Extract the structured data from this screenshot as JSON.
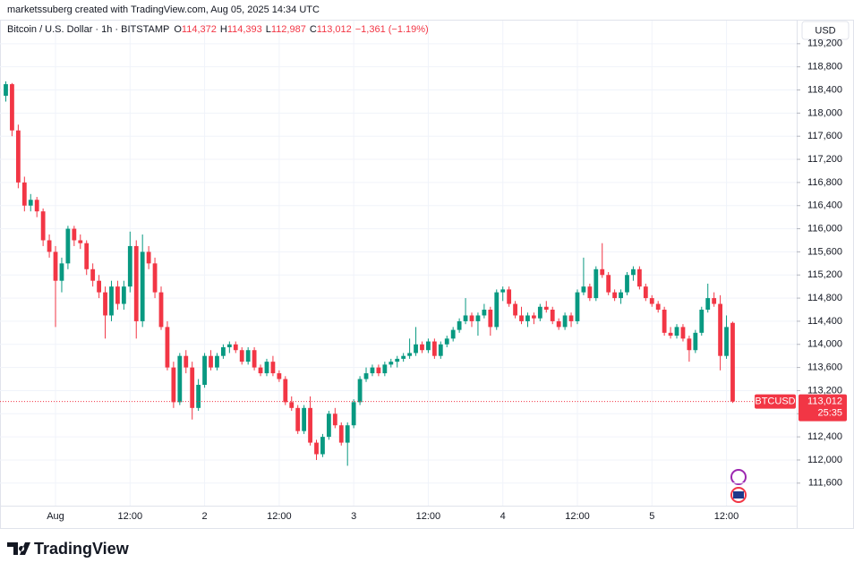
{
  "attribution": "marketssuberg created with TradingView.com, Aug 05, 2025 14:34 UTC",
  "logo": "TradingView",
  "chart_data": {
    "type": "candlestick",
    "title": "Bitcoin / U.S. Dollar · 1h · BITSTAMP",
    "ohlc_header": [
      {
        "key": "O",
        "value": "114,372"
      },
      {
        "key": "H",
        "value": "114,393"
      },
      {
        "key": "L",
        "value": "112,987"
      },
      {
        "key": "C",
        "value": "113,012"
      }
    ],
    "change": "−1,361 (−1.19%)",
    "currency": "USD",
    "price_label": {
      "symbol": "BTCUSD",
      "price": "113,012",
      "countdown": "25:35"
    },
    "colors": {
      "up": "#089981",
      "down": "#f23645"
    },
    "grid": true,
    "ylim": [
      111210,
      119600
    ],
    "yticks": [
      {
        "value": 111600,
        "label": "111,600"
      },
      {
        "value": 112000,
        "label": "112,000"
      },
      {
        "value": 112400,
        "label": "112,400"
      },
      {
        "value": 112800,
        "label": "112,800"
      },
      {
        "value": 113200,
        "label": "113,200"
      },
      {
        "value": 113600,
        "label": "113,600"
      },
      {
        "value": 114000,
        "label": "114,000"
      },
      {
        "value": 114400,
        "label": "114,400"
      },
      {
        "value": 114800,
        "label": "114,800"
      },
      {
        "value": 115200,
        "label": "115,200"
      },
      {
        "value": 115600,
        "label": "115,600"
      },
      {
        "value": 116000,
        "label": "116,000"
      },
      {
        "value": 116400,
        "label": "116,400"
      },
      {
        "value": 116800,
        "label": "116,800"
      },
      {
        "value": 117200,
        "label": "117,200"
      },
      {
        "value": 117600,
        "label": "117,600"
      },
      {
        "value": 118000,
        "label": "118,000"
      },
      {
        "value": 118400,
        "label": "118,400"
      },
      {
        "value": 118800,
        "label": "118,800"
      },
      {
        "value": 119200,
        "label": "119,200"
      }
    ],
    "categories": [
      null,
      null,
      null,
      null,
      null,
      null,
      null,
      null,
      "Aug",
      null,
      null,
      null,
      null,
      null,
      null,
      null,
      null,
      null,
      null,
      null,
      "12:00",
      null,
      null,
      null,
      null,
      null,
      null,
      null,
      null,
      null,
      null,
      null,
      "2",
      null,
      null,
      null,
      null,
      null,
      null,
      null,
      null,
      null,
      null,
      null,
      "12:00",
      null,
      null,
      null,
      null,
      null,
      null,
      null,
      null,
      null,
      null,
      null,
      "3",
      null,
      null,
      null,
      null,
      null,
      null,
      null,
      null,
      null,
      null,
      null,
      "12:00",
      null,
      null,
      null,
      null,
      null,
      null,
      null,
      null,
      null,
      null,
      null,
      "4",
      null,
      null,
      null,
      null,
      null,
      null,
      null,
      null,
      null,
      null,
      null,
      "12:00",
      null,
      null,
      null,
      null,
      null,
      null,
      null,
      null,
      null,
      null,
      null,
      "5",
      null,
      null,
      null,
      null,
      null,
      null,
      null,
      null,
      null,
      null,
      null,
      "12:00",
      null
    ],
    "candles": [
      {
        "open": 118300,
        "high": 118550,
        "low": 118200,
        "close": 118500
      },
      {
        "open": 118500,
        "high": 118520,
        "low": 117600,
        "close": 117700
      },
      {
        "open": 117700,
        "high": 117800,
        "low": 116700,
        "close": 116800
      },
      {
        "open": 116800,
        "high": 116900,
        "low": 116300,
        "close": 116400
      },
      {
        "open": 116400,
        "high": 116600,
        "low": 116300,
        "close": 116500
      },
      {
        "open": 116500,
        "high": 116550,
        "low": 116200,
        "close": 116300
      },
      {
        "open": 116300,
        "high": 116350,
        "low": 115700,
        "close": 115800
      },
      {
        "open": 115800,
        "high": 115900,
        "low": 115500,
        "close": 115600
      },
      {
        "open": 115600,
        "high": 115700,
        "low": 114300,
        "close": 115100
      },
      {
        "open": 115100,
        "high": 115500,
        "low": 114900,
        "close": 115400
      },
      {
        "open": 115400,
        "high": 116050,
        "low": 115300,
        "close": 116000
      },
      {
        "open": 116000,
        "high": 116050,
        "low": 115700,
        "close": 115800
      },
      {
        "open": 115800,
        "high": 115900,
        "low": 115650,
        "close": 115750
      },
      {
        "open": 115750,
        "high": 115800,
        "low": 115200,
        "close": 115300
      },
      {
        "open": 115300,
        "high": 115400,
        "low": 115000,
        "close": 115100
      },
      {
        "open": 115100,
        "high": 115200,
        "low": 114800,
        "close": 114900
      },
      {
        "open": 114900,
        "high": 115000,
        "low": 114100,
        "close": 114500
      },
      {
        "open": 114500,
        "high": 115100,
        "low": 114400,
        "close": 115000
      },
      {
        "open": 115000,
        "high": 115100,
        "low": 114600,
        "close": 114700
      },
      {
        "open": 114700,
        "high": 115100,
        "low": 114600,
        "close": 115000
      },
      {
        "open": 115000,
        "high": 115950,
        "low": 114900,
        "close": 115700
      },
      {
        "open": 115700,
        "high": 115800,
        "low": 114100,
        "close": 114400
      },
      {
        "open": 114400,
        "high": 115900,
        "low": 114300,
        "close": 115600
      },
      {
        "open": 115600,
        "high": 115700,
        "low": 115300,
        "close": 115400
      },
      {
        "open": 115400,
        "high": 115500,
        "low": 114800,
        "close": 114900
      },
      {
        "open": 114900,
        "high": 115000,
        "low": 114250,
        "close": 114300
      },
      {
        "open": 114300,
        "high": 114400,
        "low": 113550,
        "close": 113600
      },
      {
        "open": 113600,
        "high": 113700,
        "low": 112900,
        "close": 113000
      },
      {
        "open": 113000,
        "high": 113850,
        "low": 112950,
        "close": 113800
      },
      {
        "open": 113800,
        "high": 113900,
        "low": 113500,
        "close": 113600
      },
      {
        "open": 113600,
        "high": 113700,
        "low": 112700,
        "close": 112900
      },
      {
        "open": 112900,
        "high": 113400,
        "low": 112850,
        "close": 113300
      },
      {
        "open": 113300,
        "high": 113850,
        "low": 113250,
        "close": 113800
      },
      {
        "open": 113800,
        "high": 113900,
        "low": 113550,
        "close": 113600
      },
      {
        "open": 113600,
        "high": 113850,
        "low": 113550,
        "close": 113800
      },
      {
        "open": 113800,
        "high": 114000,
        "low": 113750,
        "close": 113950
      },
      {
        "open": 113950,
        "high": 114050,
        "low": 113850,
        "close": 114000
      },
      {
        "open": 114000,
        "high": 114050,
        "low": 113850,
        "close": 113900
      },
      {
        "open": 113900,
        "high": 113950,
        "low": 113650,
        "close": 113700
      },
      {
        "open": 113700,
        "high": 113950,
        "low": 113650,
        "close": 113900
      },
      {
        "open": 113900,
        "high": 113950,
        "low": 113550,
        "close": 113600
      },
      {
        "open": 113600,
        "high": 113650,
        "low": 113450,
        "close": 113500
      },
      {
        "open": 113500,
        "high": 113750,
        "low": 113450,
        "close": 113700
      },
      {
        "open": 113700,
        "high": 113800,
        "low": 113450,
        "close": 113500
      },
      {
        "open": 113500,
        "high": 113550,
        "low": 113350,
        "close": 113400
      },
      {
        "open": 113400,
        "high": 113450,
        "low": 112950,
        "close": 113000
      },
      {
        "open": 113000,
        "high": 113100,
        "low": 112850,
        "close": 112900
      },
      {
        "open": 112900,
        "high": 112950,
        "low": 112450,
        "close": 112500
      },
      {
        "open": 112500,
        "high": 112950,
        "low": 112450,
        "close": 112900
      },
      {
        "open": 112900,
        "high": 113100,
        "low": 112250,
        "close": 112300
      },
      {
        "open": 112300,
        "high": 112350,
        "low": 112000,
        "close": 112100
      },
      {
        "open": 112100,
        "high": 112450,
        "low": 112050,
        "close": 112400
      },
      {
        "open": 112400,
        "high": 112850,
        "low": 112350,
        "close": 112800
      },
      {
        "open": 112800,
        "high": 112900,
        "low": 112550,
        "close": 112600
      },
      {
        "open": 112600,
        "high": 112650,
        "low": 112250,
        "close": 112300
      },
      {
        "open": 112300,
        "high": 112650,
        "low": 111900,
        "close": 112600
      },
      {
        "open": 112600,
        "high": 113050,
        "low": 112550,
        "close": 113000
      },
      {
        "open": 113000,
        "high": 113450,
        "low": 112950,
        "close": 113400
      },
      {
        "open": 113400,
        "high": 113600,
        "low": 113350,
        "close": 113500
      },
      {
        "open": 113500,
        "high": 113650,
        "low": 113450,
        "close": 113600
      },
      {
        "open": 113600,
        "high": 113650,
        "low": 113450,
        "close": 113500
      },
      {
        "open": 113500,
        "high": 113700,
        "low": 113450,
        "close": 113650
      },
      {
        "open": 113650,
        "high": 113750,
        "low": 113600,
        "close": 113700
      },
      {
        "open": 113700,
        "high": 113800,
        "low": 113600,
        "close": 113750
      },
      {
        "open": 113750,
        "high": 113850,
        "low": 113700,
        "close": 113800
      },
      {
        "open": 113800,
        "high": 114100,
        "low": 113750,
        "close": 113850
      },
      {
        "open": 113850,
        "high": 114300,
        "low": 113800,
        "close": 114000
      },
      {
        "open": 114000,
        "high": 114050,
        "low": 113850,
        "close": 113900
      },
      {
        "open": 113900,
        "high": 114100,
        "low": 113850,
        "close": 114050
      },
      {
        "open": 114050,
        "high": 114100,
        "low": 113750,
        "close": 113800
      },
      {
        "open": 113800,
        "high": 114050,
        "low": 113750,
        "close": 114000
      },
      {
        "open": 114000,
        "high": 114150,
        "low": 113950,
        "close": 114100
      },
      {
        "open": 114100,
        "high": 114300,
        "low": 114050,
        "close": 114250
      },
      {
        "open": 114250,
        "high": 114450,
        "low": 114200,
        "close": 114400
      },
      {
        "open": 114400,
        "high": 114800,
        "low": 114350,
        "close": 114500
      },
      {
        "open": 114500,
        "high": 114550,
        "low": 114300,
        "close": 114400
      },
      {
        "open": 114400,
        "high": 114550,
        "low": 114150,
        "close": 114500
      },
      {
        "open": 114500,
        "high": 114700,
        "low": 114450,
        "close": 114600
      },
      {
        "open": 114600,
        "high": 114650,
        "low": 114150,
        "close": 114300
      },
      {
        "open": 114300,
        "high": 114950,
        "low": 114250,
        "close": 114900
      },
      {
        "open": 114900,
        "high": 115000,
        "low": 114750,
        "close": 114950
      },
      {
        "open": 114950,
        "high": 115000,
        "low": 114650,
        "close": 114700
      },
      {
        "open": 114700,
        "high": 114750,
        "low": 114450,
        "close": 114500
      },
      {
        "open": 114500,
        "high": 114650,
        "low": 114350,
        "close": 114400
      },
      {
        "open": 114400,
        "high": 114550,
        "low": 114300,
        "close": 114500
      },
      {
        "open": 114500,
        "high": 114550,
        "low": 114350,
        "close": 114450
      },
      {
        "open": 114450,
        "high": 114700,
        "low": 114400,
        "close": 114650
      },
      {
        "open": 114650,
        "high": 114750,
        "low": 114550,
        "close": 114600
      },
      {
        "open": 114600,
        "high": 114650,
        "low": 114350,
        "close": 114400
      },
      {
        "open": 114400,
        "high": 114450,
        "low": 114250,
        "close": 114300
      },
      {
        "open": 114300,
        "high": 114550,
        "low": 114250,
        "close": 114500
      },
      {
        "open": 114500,
        "high": 114550,
        "low": 114300,
        "close": 114400
      },
      {
        "open": 114400,
        "high": 114950,
        "low": 114350,
        "close": 114900
      },
      {
        "open": 114900,
        "high": 115500,
        "low": 114850,
        "close": 115000
      },
      {
        "open": 115000,
        "high": 115050,
        "low": 114750,
        "close": 114800
      },
      {
        "open": 114800,
        "high": 115350,
        "low": 114750,
        "close": 115300
      },
      {
        "open": 115300,
        "high": 115750,
        "low": 115150,
        "close": 115200
      },
      {
        "open": 115200,
        "high": 115250,
        "low": 114850,
        "close": 114900
      },
      {
        "open": 114900,
        "high": 114950,
        "low": 114750,
        "close": 114800
      },
      {
        "open": 114800,
        "high": 114950,
        "low": 114700,
        "close": 114900
      },
      {
        "open": 114900,
        "high": 115250,
        "low": 114850,
        "close": 115200
      },
      {
        "open": 115200,
        "high": 115350,
        "low": 115100,
        "close": 115300
      },
      {
        "open": 115300,
        "high": 115350,
        "low": 114950,
        "close": 115000
      },
      {
        "open": 115000,
        "high": 115050,
        "low": 114750,
        "close": 114800
      },
      {
        "open": 114800,
        "high": 114850,
        "low": 114650,
        "close": 114700
      },
      {
        "open": 114700,
        "high": 114750,
        "low": 114550,
        "close": 114600
      },
      {
        "open": 114600,
        "high": 114650,
        "low": 114150,
        "close": 114200
      },
      {
        "open": 114200,
        "high": 114300,
        "low": 114100,
        "close": 114150
      },
      {
        "open": 114150,
        "high": 114350,
        "low": 114100,
        "close": 114300
      },
      {
        "open": 114300,
        "high": 114350,
        "low": 114050,
        "close": 114100
      },
      {
        "open": 114100,
        "high": 114150,
        "low": 113700,
        "close": 113900
      },
      {
        "open": 113900,
        "high": 114250,
        "low": 113850,
        "close": 114200
      },
      {
        "open": 114200,
        "high": 114650,
        "low": 114150,
        "close": 114600
      },
      {
        "open": 114600,
        "high": 115050,
        "low": 114550,
        "close": 114800
      },
      {
        "open": 114800,
        "high": 114900,
        "low": 114650,
        "close": 114700
      },
      {
        "open": 114700,
        "high": 114850,
        "low": 113550,
        "close": 113800
      },
      {
        "open": 113800,
        "high": 114500,
        "low": 113750,
        "close": 114300
      },
      {
        "open": 114372,
        "high": 114393,
        "low": 112987,
        "close": 113012
      }
    ]
  }
}
